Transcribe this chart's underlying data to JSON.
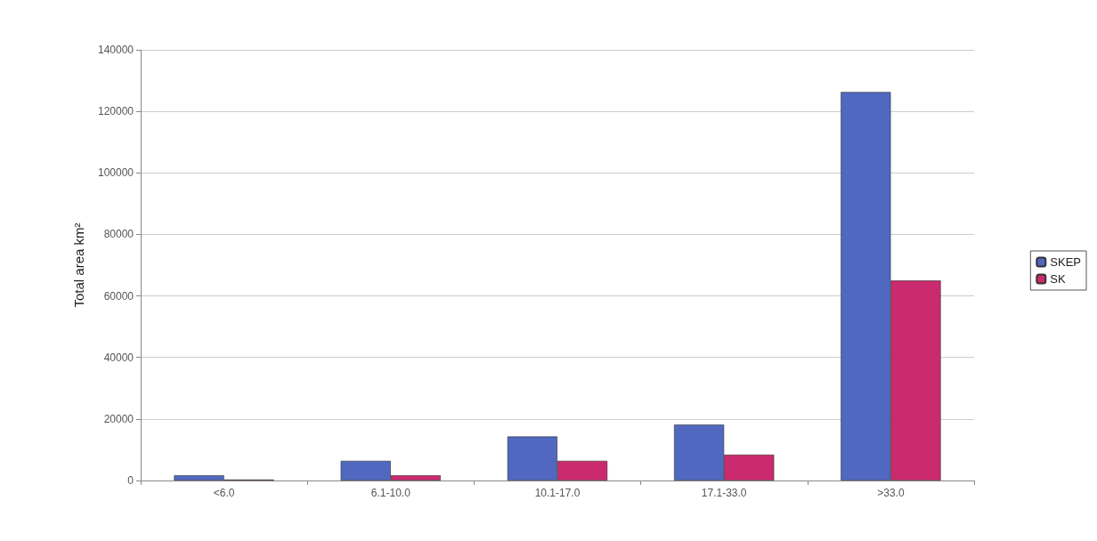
{
  "chart_data": {
    "type": "bar",
    "ylabel": "Total area km²",
    "categories": [
      "<6.0",
      "6.1-10.0",
      "10.1-17.0",
      "17.1-33.0",
      ">33.0"
    ],
    "series": [
      {
        "name": "SKEP",
        "color": "#5068c0",
        "values": [
          1700,
          6400,
          14300,
          18200,
          126300
        ]
      },
      {
        "name": "SK",
        "color": "#cc2a6e",
        "values": [
          300,
          1700,
          6400,
          8400,
          65000
        ]
      }
    ],
    "ylim": [
      0,
      140000
    ],
    "yticks": [
      0,
      20000,
      40000,
      60000,
      80000,
      100000,
      120000,
      140000
    ],
    "grid": "y",
    "legend": "right"
  }
}
